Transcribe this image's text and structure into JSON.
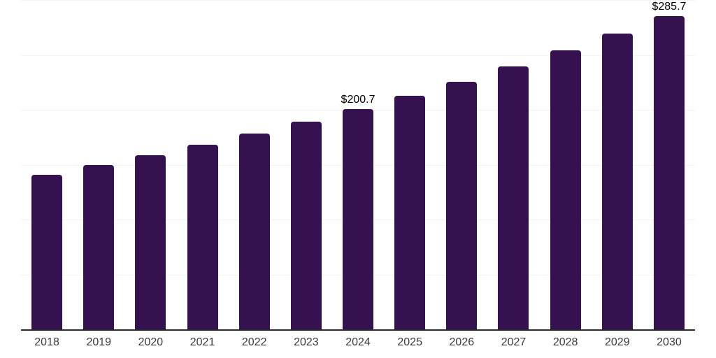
{
  "chart_data": {
    "type": "bar",
    "title": "",
    "xlabel": "",
    "ylabel": "",
    "categories": [
      "2018",
      "2019",
      "2020",
      "2021",
      "2022",
      "2023",
      "2024",
      "2025",
      "2026",
      "2027",
      "2028",
      "2029",
      "2030"
    ],
    "values": [
      140.9,
      149.5,
      158.5,
      168.1,
      178.3,
      189.2,
      200.7,
      212.9,
      225.8,
      239.5,
      254.0,
      269.4,
      285.7
    ],
    "data_labels": {
      "2024": "$200.7",
      "2030": "$285.7"
    },
    "ylim": [
      0,
      300
    ],
    "grid": true,
    "gridline_values": [
      50,
      100,
      150,
      200,
      250,
      300
    ],
    "legend_position": "none",
    "colors": {
      "bar": "#351150",
      "axis_line": "#2b2b2b",
      "gridline": "#f2f2f2",
      "tick_label": "#3a3a3a",
      "data_label": "#000000",
      "background": "#ffffff"
    }
  }
}
